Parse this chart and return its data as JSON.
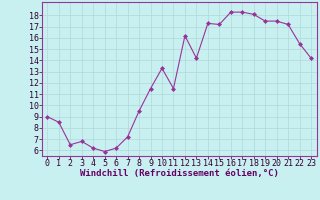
{
  "x": [
    0,
    1,
    2,
    3,
    4,
    5,
    6,
    7,
    8,
    9,
    10,
    11,
    12,
    13,
    14,
    15,
    16,
    17,
    18,
    19,
    20,
    21,
    22,
    23
  ],
  "y": [
    9,
    8.5,
    6.5,
    6.8,
    6.2,
    5.9,
    6.2,
    7.2,
    9.5,
    11.5,
    13.3,
    11.5,
    16.2,
    14.2,
    17.3,
    17.2,
    18.3,
    18.3,
    18.1,
    17.5,
    17.5,
    17.2,
    15.5,
    14.2
  ],
  "line_color": "#993399",
  "marker": "D",
  "markersize": 2.0,
  "linewidth": 0.8,
  "bg_color": "#c8f0f0",
  "grid_color": "#b0d8d8",
  "xlabel": "Windchill (Refroidissement éolien,°C)",
  "yticks": [
    6,
    7,
    8,
    9,
    10,
    11,
    12,
    13,
    14,
    15,
    16,
    17,
    18
  ],
  "xlim": [
    -0.5,
    23.5
  ],
  "ylim": [
    5.5,
    19.2
  ],
  "xlabel_fontsize": 6.5,
  "tick_fontsize": 6
}
